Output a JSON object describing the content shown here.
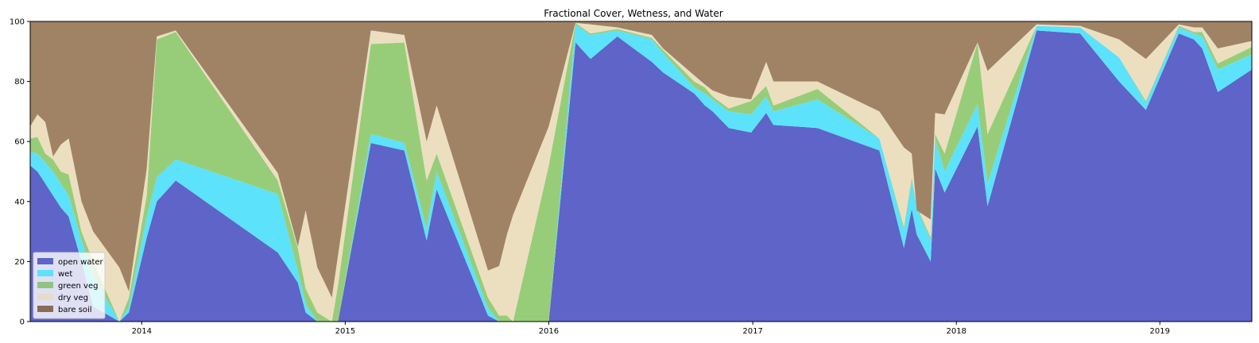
{
  "chart_data": {
    "type": "area",
    "title": "Fractional Cover, Wetness, and Water",
    "xlabel": "",
    "ylabel": "",
    "xlim": [
      "2013-06-15",
      "2019-06-15"
    ],
    "ylim": [
      0,
      100
    ],
    "x_ticks": [
      "2014",
      "2015",
      "2016",
      "2017",
      "2018",
      "2019"
    ],
    "y_ticks": [
      "0",
      "20",
      "40",
      "60",
      "80",
      "100"
    ],
    "grid": false,
    "legend_position": "lower-left",
    "stacking_order": [
      "open water",
      "wet",
      "green veg",
      "dry veg",
      "bare soil"
    ],
    "stacking_note": "cumulative boundaries (%) from bottom",
    "x": [
      "2013-06-15",
      "2013-06-28",
      "2013-07-12",
      "2013-07-26",
      "2013-08-09",
      "2013-08-23",
      "2013-09-15",
      "2013-10-06",
      "2013-11-22",
      "2013-12-09",
      "2014-01-10",
      "2014-01-28",
      "2014-03-03",
      "2014-09-02",
      "2014-10-08",
      "2014-10-22",
      "2014-11-12",
      "2014-12-08",
      "2014-12-19",
      "2015-02-16",
      "2015-04-17",
      "2015-05-27",
      "2015-06-14",
      "2015-09-14",
      "2015-10-04",
      "2015-10-18",
      "2015-10-29",
      "2016-01-01",
      "2016-02-18",
      "2016-03-16",
      "2016-05-03",
      "2016-07-04",
      "2016-07-24",
      "2016-09-18",
      "2016-10-07",
      "2016-10-21",
      "2016-11-19",
      "2016-12-29",
      "2017-01-25",
      "2017-02-07",
      "2017-04-27",
      "2017-08-16",
      "2017-09-29",
      "2017-10-13",
      "2017-10-22",
      "2017-11-16",
      "2017-11-24",
      "2017-12-11",
      "2018-02-08",
      "2018-02-26",
      "2018-05-25",
      "2018-08-11",
      "2018-10-20",
      "2018-12-07",
      "2019-02-04",
      "2019-03-03",
      "2019-03-18",
      "2019-04-15",
      "2019-06-15"
    ],
    "series": [
      {
        "name": "open water",
        "color": "#5e64c8",
        "values": [
          52,
          50,
          46,
          42,
          38,
          35,
          20,
          5,
          0,
          3,
          28,
          40,
          47,
          23,
          13,
          3,
          0,
          0,
          0,
          59.5,
          57,
          27,
          44,
          2,
          0,
          0,
          0,
          0,
          93,
          87.5,
          95,
          86.5,
          83,
          76,
          72,
          70,
          64.5,
          63,
          69.5,
          65.5,
          64.5,
          57,
          24.5,
          37.5,
          29,
          20,
          51,
          43,
          65,
          38.5,
          97,
          96,
          80,
          70.5,
          96,
          94,
          91,
          76.5,
          84
        ]
      },
      {
        "name": "wet",
        "color": "#5ce2fb",
        "values": [
          56.5,
          56,
          53,
          50,
          46,
          42,
          27,
          15,
          0,
          5,
          35,
          48,
          54,
          42.5,
          17,
          6,
          0,
          0,
          0,
          62.5,
          59.5,
          31,
          50,
          4.5,
          0,
          0,
          0,
          0,
          99,
          95.5,
          97,
          94,
          89.5,
          78,
          76,
          74,
          70,
          69,
          75,
          70,
          74,
          61,
          30.5,
          47,
          38,
          27,
          61,
          50,
          72.5,
          46,
          98.5,
          98,
          88,
          73,
          98,
          96,
          95,
          84,
          89
        ]
      },
      {
        "name": "green veg",
        "color": "#97cd79",
        "values": [
          61,
          61.5,
          56,
          54,
          50,
          49,
          30,
          20,
          0,
          8,
          42,
          94,
          96.5,
          47,
          24.5,
          11,
          3,
          0,
          12,
          92.5,
          93,
          47,
          56,
          8,
          2,
          2,
          0,
          52,
          99.5,
          96,
          97.5,
          94.5,
          90.5,
          80,
          78,
          75,
          71,
          73.5,
          78.5,
          72,
          77.5,
          61,
          31.5,
          48,
          38.5,
          28,
          62.5,
          56,
          93,
          62.5,
          98.5,
          98,
          88,
          73.5,
          98.5,
          96.5,
          96.5,
          86,
          91.5
        ]
      },
      {
        "name": "dry veg",
        "color": "#ecdfc0",
        "values": [
          65,
          69,
          66.5,
          55,
          59,
          61,
          40,
          30,
          18,
          10,
          51,
          95,
          97,
          49.5,
          25,
          37,
          18,
          8,
          22,
          97,
          95.5,
          60,
          72,
          17,
          18.5,
          29,
          35.5,
          65,
          99.5,
          99,
          98,
          95.5,
          91,
          82,
          79,
          77,
          75,
          74,
          86.5,
          80,
          80,
          70,
          58,
          56,
          37,
          34,
          69.5,
          69,
          93,
          83.5,
          99,
          98.5,
          94,
          87.5,
          99,
          98,
          98,
          91,
          93.5
        ]
      },
      {
        "name": "bare soil",
        "color": "#a08365",
        "values": [
          100,
          100,
          100,
          100,
          100,
          100,
          100,
          100,
          100,
          100,
          100,
          100,
          100,
          100,
          100,
          100,
          100,
          100,
          100,
          100,
          100,
          100,
          100,
          100,
          100,
          100,
          100,
          100,
          100,
          100,
          100,
          100,
          100,
          100,
          100,
          100,
          100,
          100,
          100,
          100,
          100,
          100,
          100,
          100,
          100,
          100,
          100,
          100,
          100,
          100,
          100,
          100,
          100,
          100,
          100,
          100,
          100,
          100,
          100
        ]
      }
    ]
  },
  "legend": {
    "items": [
      {
        "label": "open water",
        "color": "#5e64c8"
      },
      {
        "label": "wet",
        "color": "#5ce2fb"
      },
      {
        "label": "green veg",
        "color": "#93c47d"
      },
      {
        "label": "dry veg",
        "color": "#e6dcc8"
      },
      {
        "label": "bare soil",
        "color": "#8b6b55"
      }
    ]
  }
}
